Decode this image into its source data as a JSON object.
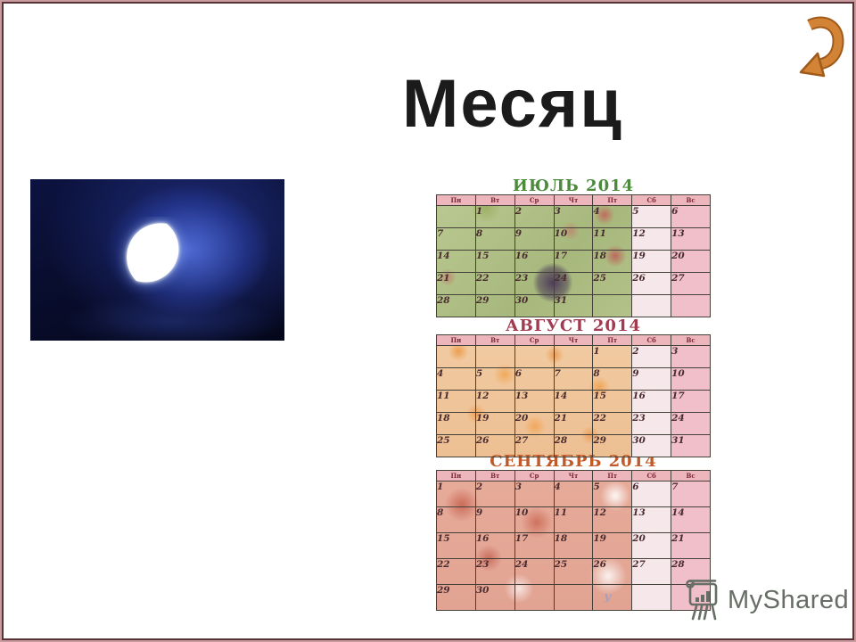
{
  "slide": {
    "title": "Месяц"
  },
  "nav": {
    "arrow_color": "#d28336",
    "arrow_outline": "#a05a1a"
  },
  "moon_image": {
    "description": "thin crescent moon glowing in dark blue night sky"
  },
  "calendar": {
    "weekdays": [
      "Пн",
      "Вт",
      "Ср",
      "Чт",
      "Пт",
      "Сб",
      "Вс"
    ],
    "months": [
      {
        "title": "ИЮЛЬ 2014",
        "color": "#4c8a3c",
        "theme": "july",
        "rows": [
          [
            "",
            "1",
            "2",
            "3",
            "4",
            "5",
            "6"
          ],
          [
            "7",
            "8",
            "9",
            "10",
            "11",
            "12",
            "13"
          ],
          [
            "14",
            "15",
            "16",
            "17",
            "18",
            "19",
            "20"
          ],
          [
            "21",
            "22",
            "23",
            "24",
            "25",
            "26",
            "27"
          ],
          [
            "28",
            "29",
            "30",
            "31",
            "",
            "",
            ""
          ]
        ]
      },
      {
        "title": "АВГУСТ 2014",
        "color": "#a23a50",
        "theme": "august",
        "rows": [
          [
            "",
            "",
            "",
            "",
            "1",
            "2",
            "3"
          ],
          [
            "4",
            "5",
            "6",
            "7",
            "8",
            "9",
            "10"
          ],
          [
            "11",
            "12",
            "13",
            "14",
            "15",
            "16",
            "17"
          ],
          [
            "18",
            "19",
            "20",
            "21",
            "22",
            "23",
            "24"
          ],
          [
            "25",
            "26",
            "27",
            "28",
            "29",
            "30",
            "31"
          ]
        ]
      },
      {
        "title": "СЕНТЯБРЬ 2014",
        "color": "#c05a28",
        "theme": "september",
        "rows": [
          [
            "1",
            "2",
            "3",
            "4",
            "5",
            "6",
            "7"
          ],
          [
            "8",
            "9",
            "10",
            "11",
            "12",
            "13",
            "14"
          ],
          [
            "15",
            "16",
            "17",
            "18",
            "19",
            "20",
            "21"
          ],
          [
            "22",
            "23",
            "24",
            "25",
            "26",
            "27",
            "28"
          ],
          [
            "29",
            "30",
            "",
            "",
            "",
            "",
            ""
          ]
        ],
        "mark": {
          "row": 4,
          "col": 4,
          "glyph": "у"
        }
      }
    ]
  },
  "watermark": {
    "text": "MyShared"
  },
  "colors": {
    "border_outer": "#c99a9e",
    "border_inner": "#5a3134",
    "header_band": "#ecb6bc",
    "weekend_sat": "#f6e7ea",
    "weekend_sun": "#f1bfc9",
    "day_number": "#4a2c30"
  }
}
